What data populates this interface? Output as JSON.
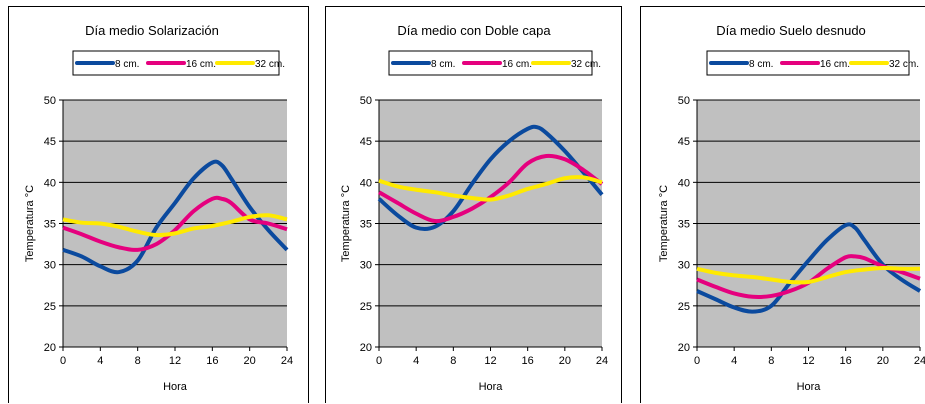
{
  "chart_data": [
    {
      "type": "line",
      "title": "Día medio Solarización",
      "xlabel": "Hora",
      "ylabel": "Temperatura °C",
      "xlim": [
        0,
        24
      ],
      "ylim": [
        20,
        50
      ],
      "xticks": [
        "0",
        "4",
        "8",
        "12",
        "16",
        "20",
        "24"
      ],
      "yticks": [
        "20",
        "25",
        "30",
        "35",
        "40",
        "45",
        "50"
      ],
      "grid": true,
      "legend_position": "top-center",
      "series": [
        {
          "name": "8 cm.",
          "color": "#0b4a9e",
          "x": [
            0,
            2,
            4,
            6,
            8,
            10,
            12,
            14,
            16,
            17,
            18,
            20,
            22,
            24
          ],
          "y": [
            31.8,
            31,
            29.8,
            29.1,
            30.5,
            34.5,
            37.5,
            40.5,
            42.4,
            42.1,
            40.5,
            37,
            34.2,
            31.8
          ]
        },
        {
          "name": "16 cm.",
          "color": "#e5007e",
          "x": [
            0,
            2,
            4,
            6,
            8,
            10,
            12,
            14,
            16,
            17,
            18,
            20,
            22,
            24
          ],
          "y": [
            34.5,
            33.7,
            32.8,
            32.1,
            31.8,
            32.5,
            34.2,
            36.5,
            38,
            38,
            37.5,
            35.5,
            35,
            34.3
          ]
        },
        {
          "name": "32 cm.",
          "color": "#ffea00",
          "x": [
            0,
            2,
            4,
            6,
            8,
            10,
            12,
            14,
            16,
            18,
            20,
            22,
            24
          ],
          "y": [
            35.5,
            35.1,
            35,
            34.6,
            34,
            33.6,
            33.8,
            34.4,
            34.7,
            35.2,
            35.8,
            36,
            35.5
          ]
        }
      ]
    },
    {
      "type": "line",
      "title": "Día medio con Doble capa",
      "xlabel": "Hora",
      "ylabel": "Temperatura °C",
      "xlim": [
        0,
        24
      ],
      "ylim": [
        20,
        50
      ],
      "xticks": [
        "0",
        "4",
        "8",
        "12",
        "16",
        "20",
        "24"
      ],
      "yticks": [
        "20",
        "25",
        "30",
        "35",
        "40",
        "45",
        "50"
      ],
      "grid": true,
      "legend_position": "top-center",
      "series": [
        {
          "name": "8 cm.",
          "color": "#0b4a9e",
          "x": [
            0,
            2,
            4,
            6,
            8,
            10,
            12,
            14,
            16,
            17,
            18,
            20,
            22,
            24
          ],
          "y": [
            38,
            36,
            34.5,
            34.6,
            36.5,
            39.8,
            42.8,
            45,
            46.5,
            46.7,
            46,
            43.8,
            41.2,
            38.5
          ]
        },
        {
          "name": "16 cm.",
          "color": "#e5007e",
          "x": [
            0,
            2,
            4,
            6,
            8,
            10,
            12,
            14,
            16,
            18,
            20,
            22,
            24
          ],
          "y": [
            38.8,
            37.5,
            36.2,
            35.3,
            35.8,
            36.8,
            38.2,
            40,
            42.3,
            43.2,
            42.8,
            41.5,
            39.8
          ]
        },
        {
          "name": "32 cm.",
          "color": "#ffea00",
          "x": [
            0,
            2,
            4,
            6,
            8,
            10,
            12,
            14,
            16,
            18,
            20,
            22,
            24
          ],
          "y": [
            40.2,
            39.5,
            39.1,
            38.8,
            38.4,
            38.1,
            37.9,
            38.4,
            39.2,
            39.8,
            40.5,
            40.6,
            40
          ]
        }
      ]
    },
    {
      "type": "line",
      "title": "Día medio Suelo desnudo",
      "xlabel": "Hora",
      "ylabel": "Temperatura °C",
      "xlim": [
        0,
        24
      ],
      "ylim": [
        20,
        50
      ],
      "xticks": [
        "0",
        "4",
        "8",
        "12",
        "16",
        "20",
        "24"
      ],
      "yticks": [
        "20",
        "25",
        "30",
        "35",
        "40",
        "45",
        "50"
      ],
      "grid": true,
      "legend_position": "top-center",
      "series": [
        {
          "name": "8 cm.",
          "color": "#0b4a9e",
          "x": [
            0,
            2,
            4,
            6,
            8,
            10,
            12,
            14,
            16,
            17,
            18,
            20,
            22,
            24
          ],
          "y": [
            26.8,
            25.8,
            24.8,
            24.3,
            25,
            27.8,
            30.5,
            33,
            34.8,
            34.5,
            33,
            30,
            28.2,
            26.8
          ]
        },
        {
          "name": "16 cm.",
          "color": "#e5007e",
          "x": [
            0,
            2,
            4,
            6,
            8,
            10,
            12,
            14,
            16,
            17,
            18,
            20,
            22,
            24
          ],
          "y": [
            28.2,
            27.3,
            26.5,
            26.1,
            26.2,
            26.8,
            27.8,
            29.5,
            30.9,
            31,
            30.8,
            29.8,
            29.1,
            28.3
          ]
        },
        {
          "name": "32 cm.",
          "color": "#ffea00",
          "x": [
            0,
            2,
            4,
            6,
            8,
            10,
            12,
            14,
            16,
            18,
            20,
            22,
            24
          ],
          "y": [
            29.5,
            29,
            28.7,
            28.5,
            28.2,
            27.9,
            27.9,
            28.5,
            29.1,
            29.4,
            29.6,
            29.5,
            29.5
          ]
        }
      ]
    }
  ]
}
